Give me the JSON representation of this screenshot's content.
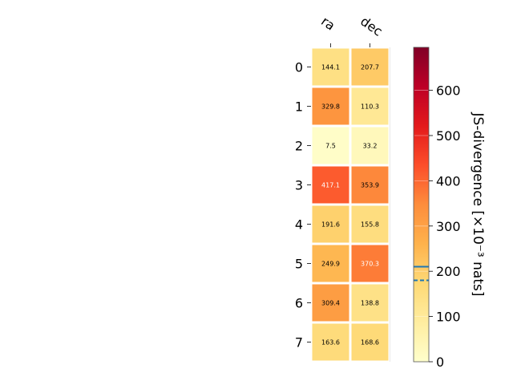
{
  "chart_data": {
    "type": "heatmap",
    "columns": [
      "ra",
      "dec"
    ],
    "rows": [
      "0",
      "1",
      "2",
      "3",
      "4",
      "5",
      "6",
      "7"
    ],
    "values": [
      [
        144.1,
        207.7
      ],
      [
        329.8,
        110.3
      ],
      [
        7.5,
        33.2
      ],
      [
        417.1,
        353.9
      ],
      [
        191.6,
        155.8
      ],
      [
        249.9,
        370.3
      ],
      [
        309.4,
        138.8
      ],
      [
        163.6,
        168.6
      ]
    ],
    "cell_labels": [
      [
        "144.1",
        "207.7"
      ],
      [
        "329.8",
        "110.3"
      ],
      [
        "7.5",
        "33.2"
      ],
      [
        "417.1",
        "353.9"
      ],
      [
        "191.6",
        "155.8"
      ],
      [
        "249.9",
        "370.3"
      ],
      [
        "309.4",
        "138.8"
      ],
      [
        "163.6",
        "168.6"
      ]
    ],
    "colorbar": {
      "label": "JS-divergence [×10⁻³ nats]",
      "range": [
        0,
        695
      ],
      "ticks": [
        0,
        100,
        200,
        300,
        400,
        500,
        600
      ],
      "tick_labels": [
        "0",
        "100",
        "200",
        "300",
        "400",
        "500",
        "600"
      ],
      "colormap": "YlOrRd",
      "reference_lines": [
        {
          "value": 210,
          "style": "solid",
          "color": "#1f77b4"
        },
        {
          "value": 180,
          "style": "dashed",
          "color": "#1f77b4"
        }
      ]
    }
  }
}
